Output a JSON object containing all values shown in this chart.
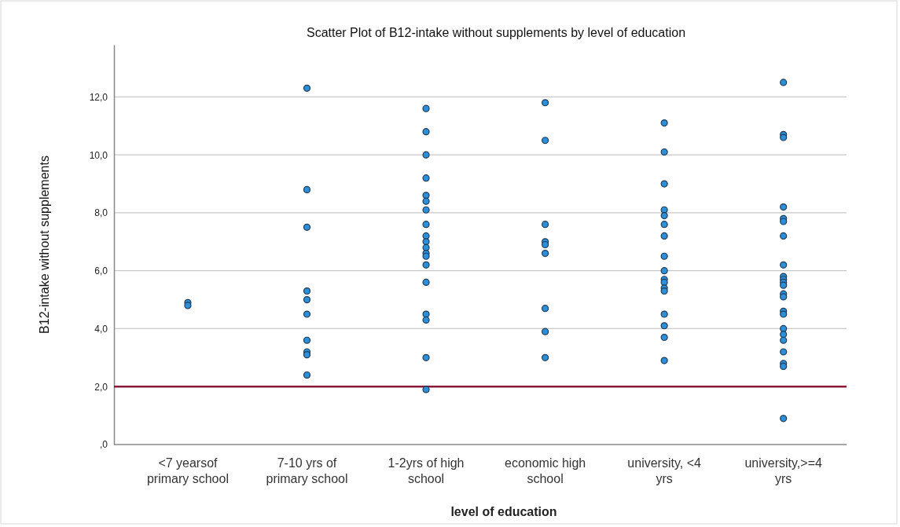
{
  "chart_data": {
    "type": "scatter",
    "title": "Scatter Plot of B12-intake without supplements by level of education",
    "xlabel": "level of education",
    "ylabel": "B12-intake without supplements",
    "categories": [
      "<7 yearsof\nprimary school",
      "7-10 yrs of\nprimary school",
      "1-2yrs of high\nschool",
      "economic high\nschool",
      "university, <4\nyrs",
      "university,>=4\nyrs"
    ],
    "series": [
      {
        "color": "#2b90d9",
        "x": [
          "<7 yearsof\nprimary school",
          "<7 yearsof\nprimary school",
          "7-10 yrs of\nprimary school",
          "7-10 yrs of\nprimary school",
          "7-10 yrs of\nprimary school",
          "7-10 yrs of\nprimary school",
          "7-10 yrs of\nprimary school",
          "7-10 yrs of\nprimary school",
          "7-10 yrs of\nprimary school",
          "7-10 yrs of\nprimary school",
          "7-10 yrs of\nprimary school",
          "7-10 yrs of\nprimary school",
          "1-2yrs of high\nschool",
          "1-2yrs of high\nschool",
          "1-2yrs of high\nschool",
          "1-2yrs of high\nschool",
          "1-2yrs of high\nschool",
          "1-2yrs of high\nschool",
          "1-2yrs of high\nschool",
          "1-2yrs of high\nschool",
          "1-2yrs of high\nschool",
          "1-2yrs of high\nschool",
          "1-2yrs of high\nschool",
          "1-2yrs of high\nschool",
          "1-2yrs of high\nschool",
          "1-2yrs of high\nschool",
          "1-2yrs of high\nschool",
          "1-2yrs of high\nschool",
          "1-2yrs of high\nschool",
          "1-2yrs of high\nschool",
          "1-2yrs of high\nschool",
          "economic high\nschool",
          "economic high\nschool",
          "economic high\nschool",
          "economic high\nschool",
          "economic high\nschool",
          "economic high\nschool",
          "economic high\nschool",
          "economic high\nschool",
          "economic high\nschool",
          "university, <4\nyrs",
          "university, <4\nyrs",
          "university, <4\nyrs",
          "university, <4\nyrs",
          "university, <4\nyrs",
          "university, <4\nyrs",
          "university, <4\nyrs",
          "university, <4\nyrs",
          "university, <4\nyrs",
          "university, <4\nyrs",
          "university, <4\nyrs",
          "university, <4\nyrs",
          "university, <4\nyrs",
          "university, <4\nyrs",
          "university, <4\nyrs",
          "university, <4\nyrs",
          "university, <4\nyrs",
          "university,>=4\nyrs",
          "university,>=4\nyrs",
          "university,>=4\nyrs",
          "university,>=4\nyrs",
          "university,>=4\nyrs",
          "university,>=4\nyrs",
          "university,>=4\nyrs",
          "university,>=4\nyrs",
          "university,>=4\nyrs",
          "university,>=4\nyrs",
          "university,>=4\nyrs",
          "university,>=4\nyrs",
          "university,>=4\nyrs",
          "university,>=4\nyrs",
          "university,>=4\nyrs",
          "university,>=4\nyrs",
          "university,>=4\nyrs",
          "university,>=4\nyrs",
          "university,>=4\nyrs",
          "university,>=4\nyrs",
          "university,>=4\nyrs",
          "university,>=4\nyrs",
          "university,>=4\nyrs"
        ],
        "values": [
          4.9,
          4.8,
          12.3,
          8.8,
          7.5,
          5.3,
          5.0,
          4.5,
          3.6,
          3.2,
          3.1,
          2.4,
          11.6,
          10.8,
          10.0,
          9.2,
          8.6,
          8.4,
          8.1,
          7.6,
          7.2,
          7.0,
          6.8,
          6.6,
          6.5,
          6.2,
          5.6,
          4.5,
          4.3,
          3.0,
          1.9,
          11.8,
          10.5,
          7.6,
          7.0,
          6.9,
          6.6,
          4.7,
          3.9,
          3.0,
          11.1,
          10.1,
          9.0,
          8.1,
          7.9,
          7.6,
          7.2,
          6.5,
          6.0,
          5.7,
          5.6,
          5.4,
          5.3,
          4.5,
          4.1,
          3.7,
          2.9,
          12.5,
          10.7,
          10.6,
          8.2,
          7.8,
          7.7,
          7.2,
          6.2,
          5.8,
          5.7,
          5.6,
          5.5,
          5.2,
          5.1,
          4.6,
          4.5,
          4.0,
          3.8,
          3.6,
          3.2,
          2.8,
          2.7,
          0.9
        ]
      }
    ],
    "ylim": [
      0,
      13.8
    ],
    "yticks": [
      {
        "value": 0,
        "label": ",0"
      },
      {
        "value": 2,
        "label": "2,0"
      },
      {
        "value": 4,
        "label": "4,0"
      },
      {
        "value": 6,
        "label": "6,0"
      },
      {
        "value": 8,
        "label": "8,0"
      },
      {
        "value": 10,
        "label": "10,0"
      },
      {
        "value": 12,
        "label": "12,0"
      }
    ],
    "grid": "y",
    "marker": "circle",
    "ref_lines": [
      {
        "axis": "y",
        "value": 2,
        "color": "#8b1a3a"
      }
    ]
  }
}
